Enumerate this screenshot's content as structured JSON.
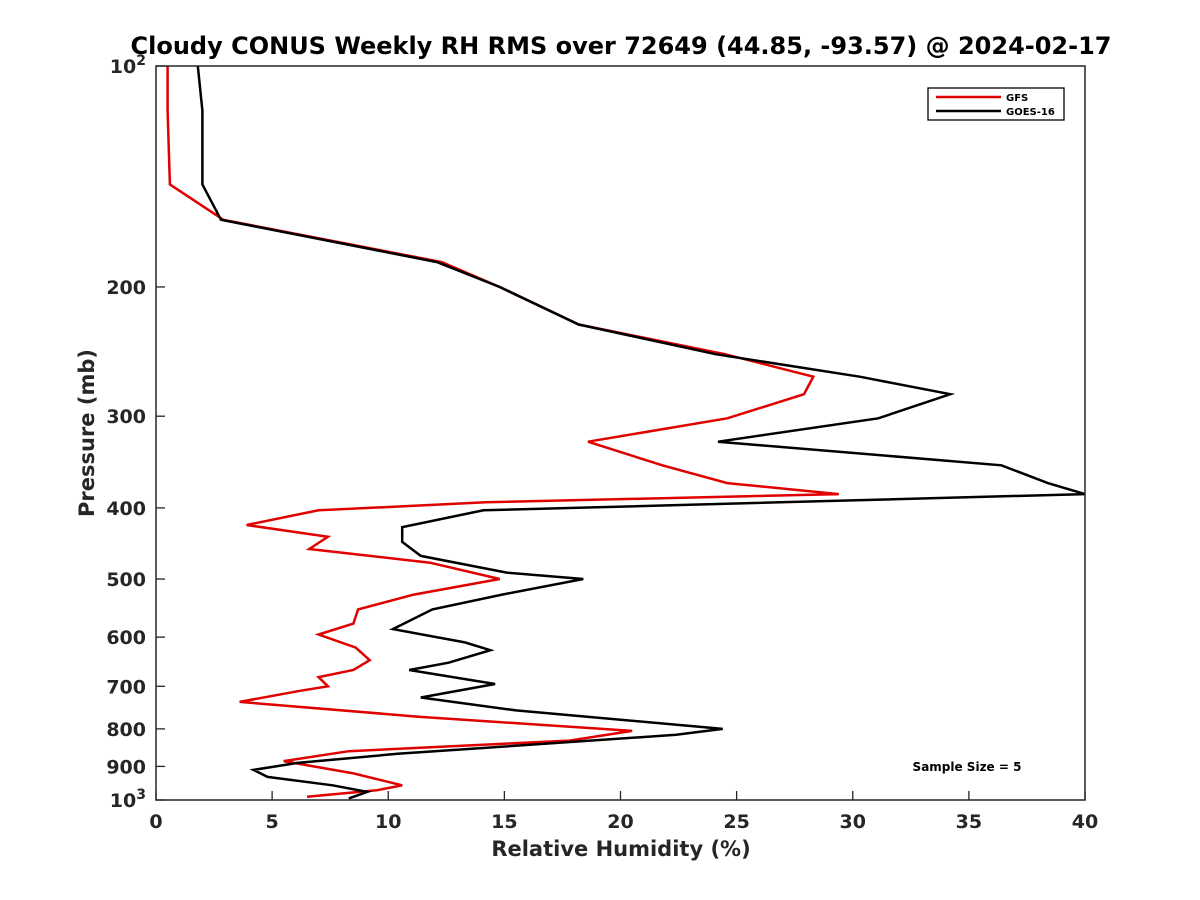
{
  "chart_data": {
    "type": "line",
    "title": "Cloudy CONUS Weekly RH RMS over 72649 (44.85, -93.57) @ 2024-02-17",
    "xlabel": "Relative Humidity (%)",
    "ylabel": "Pressure (mb)",
    "xlim": [
      0,
      40
    ],
    "ylim": [
      100,
      1000
    ],
    "y_scale": "log",
    "y_reversed": true,
    "grid": false,
    "legend_position": "top-right",
    "x_ticks": [
      0,
      5,
      10,
      15,
      20,
      25,
      30,
      35,
      40
    ],
    "x_tick_labels": [
      "0",
      "5",
      "10",
      "15",
      "20",
      "25",
      "30",
      "35",
      "40"
    ],
    "y_ticks": [
      {
        "value": 100,
        "label": "10",
        "sup": "2"
      },
      {
        "value": 200,
        "label": "200",
        "sup": ""
      },
      {
        "value": 300,
        "label": "300",
        "sup": ""
      },
      {
        "value": 400,
        "label": "400",
        "sup": ""
      },
      {
        "value": 500,
        "label": "500",
        "sup": ""
      },
      {
        "value": 600,
        "label": "600",
        "sup": ""
      },
      {
        "value": 700,
        "label": "700",
        "sup": ""
      },
      {
        "value": 800,
        "label": "800",
        "sup": ""
      },
      {
        "value": 900,
        "label": "900",
        "sup": ""
      },
      {
        "value": 1000,
        "label": "10",
        "sup": "3"
      }
    ],
    "annotation": "Sample Size = 5",
    "series": [
      {
        "name": "GFS",
        "color": "#e00000",
        "points": [
          [
            0.5,
            100
          ],
          [
            0.5,
            115
          ],
          [
            0.55,
            130
          ],
          [
            0.6,
            145
          ],
          [
            2.9,
            162
          ],
          [
            12.3,
            185
          ],
          [
            14.8,
            200
          ],
          [
            18.2,
            225
          ],
          [
            24.5,
            247
          ],
          [
            28.3,
            265
          ],
          [
            27.9,
            280
          ],
          [
            24.6,
            302
          ],
          [
            18.6,
            325
          ],
          [
            21.8,
            350
          ],
          [
            24.6,
            370
          ],
          [
            29.4,
            383
          ],
          [
            14.2,
            393
          ],
          [
            7.0,
            403
          ],
          [
            3.9,
            422
          ],
          [
            7.4,
            438
          ],
          [
            6.6,
            455
          ],
          [
            11.8,
            475
          ],
          [
            14.8,
            500
          ],
          [
            11.1,
            525
          ],
          [
            8.7,
            550
          ],
          [
            8.5,
            575
          ],
          [
            7.0,
            595
          ],
          [
            8.6,
            620
          ],
          [
            9.2,
            645
          ],
          [
            8.5,
            665
          ],
          [
            7.0,
            680
          ],
          [
            7.4,
            700
          ],
          [
            6.2,
            710
          ],
          [
            3.6,
            735
          ],
          [
            11.3,
            770
          ],
          [
            20.5,
            805
          ],
          [
            17.8,
            830
          ],
          [
            8.3,
            858
          ],
          [
            5.5,
            885
          ],
          [
            8.5,
            920
          ],
          [
            10.6,
            955
          ],
          [
            9.5,
            970
          ],
          [
            6.5,
            990
          ]
        ]
      },
      {
        "name": "GOES-16",
        "color": "#000000",
        "points": [
          [
            1.8,
            100
          ],
          [
            2.0,
            115
          ],
          [
            2.0,
            130
          ],
          [
            2.0,
            145
          ],
          [
            2.8,
            162
          ],
          [
            12.1,
            185
          ],
          [
            14.8,
            200
          ],
          [
            18.2,
            225
          ],
          [
            24.1,
            247
          ],
          [
            30.3,
            265
          ],
          [
            34.2,
            280
          ],
          [
            31.1,
            302
          ],
          [
            24.2,
            325
          ],
          [
            36.4,
            350
          ],
          [
            38.4,
            370
          ],
          [
            40.0,
            383
          ],
          [
            14.1,
            403
          ],
          [
            10.6,
            425
          ],
          [
            10.6,
            445
          ],
          [
            11.4,
            465
          ],
          [
            15.1,
            490
          ],
          [
            18.4,
            500
          ],
          [
            14.9,
            525
          ],
          [
            11.9,
            550
          ],
          [
            10.2,
            585
          ],
          [
            13.3,
            610
          ],
          [
            14.4,
            625
          ],
          [
            12.6,
            650
          ],
          [
            10.9,
            665
          ],
          [
            14.6,
            695
          ],
          [
            11.4,
            725
          ],
          [
            15.5,
            755
          ],
          [
            24.4,
            800
          ],
          [
            22.4,
            815
          ],
          [
            10.4,
            865
          ],
          [
            6.1,
            890
          ],
          [
            4.2,
            910
          ],
          [
            4.8,
            930
          ],
          [
            7.6,
            955
          ],
          [
            9.1,
            975
          ],
          [
            8.3,
            995
          ]
        ]
      }
    ]
  }
}
